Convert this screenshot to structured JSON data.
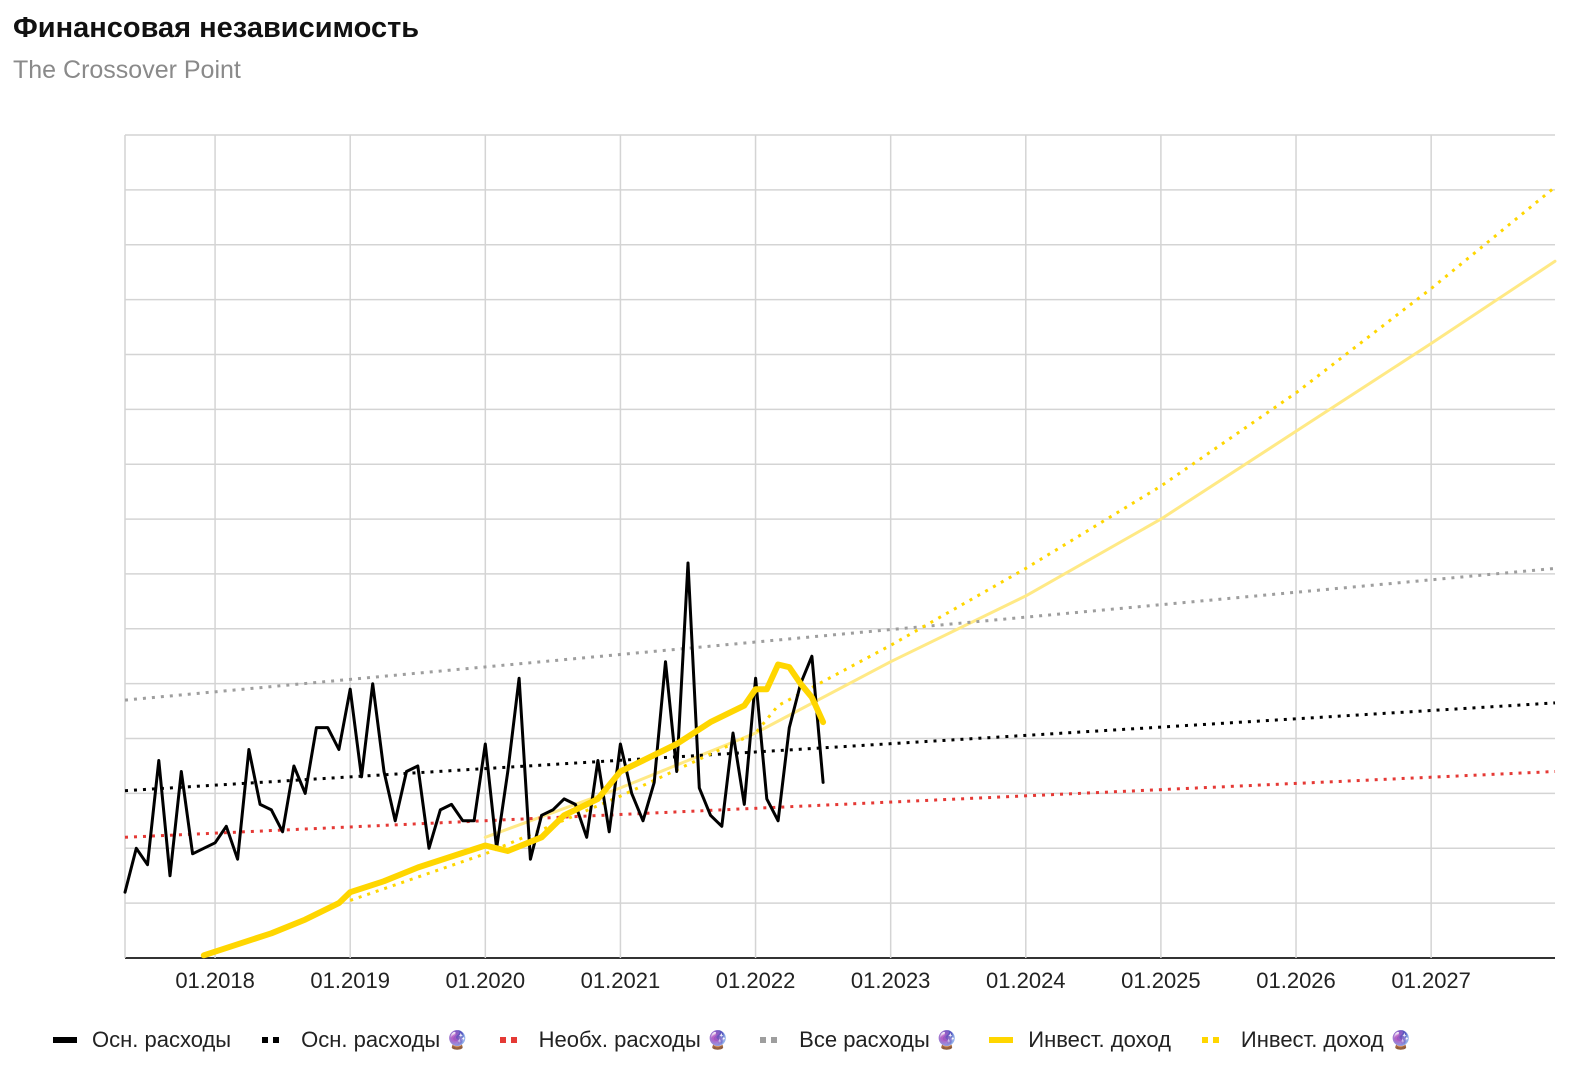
{
  "title": "Финансовая независимость",
  "subtitle": "The Crossover Point",
  "chart_data": {
    "type": "line",
    "title": "Финансовая независимость",
    "subtitle": "The Crossover Point",
    "x_ticks": [
      "01.2018",
      "01.2019",
      "01.2020",
      "01.2021",
      "01.2022",
      "01.2023",
      "01.2024",
      "01.2025",
      "01.2026",
      "01.2027"
    ],
    "xlim": [
      "2017-05",
      "2027-12"
    ],
    "ylim": [
      0,
      15
    ],
    "grid": true,
    "legend_position": "bottom",
    "series": [
      {
        "name": "Осн. расходы",
        "style": "solid",
        "color": "#000000",
        "width": 3,
        "x": [
          "2017-05",
          "2017-06",
          "2017-07",
          "2017-08",
          "2017-09",
          "2017-10",
          "2017-11",
          "2017-12",
          "2018-01",
          "2018-02",
          "2018-03",
          "2018-04",
          "2018-05",
          "2018-06",
          "2018-07",
          "2018-08",
          "2018-09",
          "2018-10",
          "2018-11",
          "2018-12",
          "2019-01",
          "2019-02",
          "2019-03",
          "2019-04",
          "2019-05",
          "2019-06",
          "2019-07",
          "2019-08",
          "2019-09",
          "2019-10",
          "2019-11",
          "2019-12",
          "2020-01",
          "2020-02",
          "2020-03",
          "2020-04",
          "2020-05",
          "2020-06",
          "2020-07",
          "2020-08",
          "2020-09",
          "2020-10",
          "2020-11",
          "2020-12",
          "2021-01",
          "2021-02",
          "2021-03",
          "2021-04",
          "2021-05",
          "2021-06",
          "2021-07",
          "2021-08",
          "2021-09",
          "2021-10",
          "2021-11",
          "2021-12",
          "2022-01",
          "2022-02",
          "2022-03",
          "2022-04",
          "2022-05",
          "2022-06",
          "2022-07"
        ],
        "y": [
          1.2,
          2.0,
          1.7,
          3.6,
          1.5,
          3.4,
          1.9,
          2.0,
          2.1,
          2.4,
          1.8,
          3.8,
          2.8,
          2.7,
          2.3,
          3.5,
          3.0,
          4.2,
          4.2,
          3.8,
          4.9,
          3.3,
          5.0,
          3.4,
          2.5,
          3.4,
          3.5,
          2.0,
          2.7,
          2.8,
          2.5,
          2.5,
          3.9,
          2.0,
          3.4,
          5.1,
          1.8,
          2.6,
          2.7,
          2.9,
          2.8,
          2.2,
          3.6,
          2.3,
          3.9,
          3.0,
          2.5,
          3.2,
          5.4,
          3.4,
          7.2,
          3.1,
          2.6,
          2.4,
          4.1,
          2.8,
          5.1,
          2.9,
          2.5,
          4.2,
          5.0,
          5.5,
          3.2
        ]
      },
      {
        "name": "Осн. расходы 🔮",
        "style": "dotted",
        "color": "#000000",
        "width": 3,
        "x": [
          "2017-05",
          "2027-12"
        ],
        "y": [
          3.05,
          4.65
        ]
      },
      {
        "name": "Необх. расходы 🔮",
        "style": "dotted",
        "color": "#e53935",
        "width": 3,
        "x": [
          "2017-05",
          "2027-12"
        ],
        "y": [
          2.2,
          3.4
        ]
      },
      {
        "name": "Все расходы 🔮",
        "style": "dotted",
        "color": "#9e9e9e",
        "width": 3,
        "x": [
          "2017-05",
          "2027-12"
        ],
        "y": [
          4.7,
          7.1
        ]
      },
      {
        "name": "Инвест. доход",
        "style": "solid",
        "color": "#ffd600",
        "width": 6,
        "x": [
          "2017-12",
          "2018-03",
          "2018-06",
          "2018-09",
          "2018-12",
          "2019-01",
          "2019-04",
          "2019-07",
          "2019-10",
          "2020-01",
          "2020-03",
          "2020-06",
          "2020-08",
          "2020-11",
          "2021-01",
          "2021-03",
          "2021-06",
          "2021-09",
          "2021-12",
          "2022-01",
          "2022-02",
          "2022-03",
          "2022-04",
          "2022-05",
          "2022-06",
          "2022-07"
        ],
        "y": [
          0.05,
          0.25,
          0.45,
          0.7,
          1.0,
          1.2,
          1.4,
          1.65,
          1.85,
          2.05,
          1.95,
          2.2,
          2.6,
          2.9,
          3.4,
          3.6,
          3.9,
          4.3,
          4.6,
          4.9,
          4.9,
          5.35,
          5.3,
          5.0,
          4.75,
          4.3
        ]
      },
      {
        "name": "Инвест. доход 🔮",
        "style": "dotted",
        "color": "#ffd600",
        "width": 3,
        "x": [
          "2019-01",
          "2020-01",
          "2021-01",
          "2022-01",
          "2022-03",
          "2023-01",
          "2024-01",
          "2025-01",
          "2026-01",
          "2027-01",
          "2027-12"
        ],
        "y": [
          1.05,
          1.9,
          2.95,
          4.1,
          4.6,
          5.7,
          7.1,
          8.6,
          10.3,
          12.2,
          14.05
        ]
      },
      {
        "name": "",
        "style": "solid",
        "color": "#ffe985",
        "width": 3,
        "x": [
          "2020-01",
          "2021-01",
          "2022-01",
          "2023-01",
          "2024-01",
          "2025-01",
          "2026-01",
          "2027-01",
          "2027-12"
        ],
        "y": [
          2.2,
          3.1,
          4.1,
          5.4,
          6.6,
          8.0,
          9.6,
          11.2,
          12.7
        ]
      }
    ]
  },
  "legend": [
    {
      "label": "Осн. расходы",
      "color": "#000000",
      "style": "solid",
      "has_emoji": false
    },
    {
      "label": "Осн. расходы",
      "color": "#000000",
      "style": "dotted",
      "has_emoji": true
    },
    {
      "label": "Необх. расходы",
      "color": "#e53935",
      "style": "dotted",
      "has_emoji": true
    },
    {
      "label": "Все расходы",
      "color": "#9e9e9e",
      "style": "dotted",
      "has_emoji": true
    },
    {
      "label": "Инвест. доход",
      "color": "#ffd600",
      "style": "solid",
      "has_emoji": false
    },
    {
      "label": "Инвест. доход",
      "color": "#ffd600",
      "style": "dotted",
      "has_emoji": true
    }
  ],
  "legend_emoji": "🔮"
}
